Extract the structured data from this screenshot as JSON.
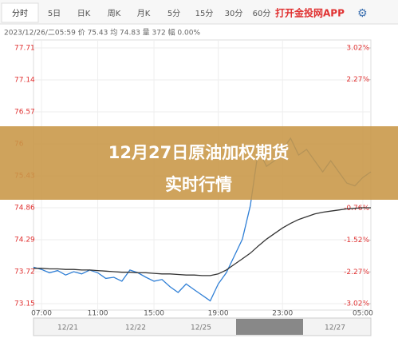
{
  "tabs": [
    "分时",
    "5日",
    "日K",
    "周K",
    "月K",
    "5分",
    "15分",
    "30分",
    "60分"
  ],
  "app_link": "打开金投网APP",
  "info": "2023/12/26/二05:59 价 75.43 均 74.83 量 372 幅 0.00%",
  "banner": "12月27日原油加权期货实时行情",
  "navigator": [
    "12/21",
    "12/22",
    "12/25",
    "12/27"
  ],
  "chart_data": {
    "type": "line",
    "categories": [
      null,
      "07:00",
      null,
      null,
      null,
      null,
      null,
      null,
      "11:00",
      null,
      null,
      null,
      null,
      null,
      null,
      "15:00",
      null,
      null,
      null,
      null,
      null,
      null,
      null,
      "19:00",
      null,
      null,
      null,
      null,
      null,
      null,
      null,
      "23:00",
      null,
      null,
      null,
      null,
      null,
      null,
      null,
      null,
      null,
      "05:00",
      null
    ],
    "series": [
      {
        "name": "价",
        "color": "#2f7fd6",
        "values": [
          73.8,
          73.76,
          73.7,
          73.74,
          73.66,
          73.72,
          73.68,
          73.75,
          73.7,
          73.6,
          73.62,
          73.55,
          73.75,
          73.7,
          73.62,
          73.55,
          73.58,
          73.45,
          73.35,
          73.5,
          73.4,
          73.3,
          73.2,
          73.5,
          73.7,
          74.0,
          74.3,
          74.9,
          75.9,
          75.6,
          75.7,
          75.9,
          76.1,
          75.8,
          75.9,
          75.7,
          75.5,
          75.7,
          75.5,
          75.3,
          75.25,
          75.4,
          75.5
        ]
      },
      {
        "name": "均",
        "color": "#333333",
        "values": [
          73.78,
          73.78,
          73.77,
          73.77,
          73.76,
          73.76,
          73.75,
          73.75,
          73.74,
          73.73,
          73.72,
          73.71,
          73.71,
          73.7,
          73.7,
          73.69,
          73.68,
          73.68,
          73.67,
          73.66,
          73.66,
          73.65,
          73.65,
          73.68,
          73.75,
          73.85,
          73.95,
          74.05,
          74.18,
          74.3,
          74.4,
          74.5,
          74.58,
          74.65,
          74.7,
          74.75,
          74.78,
          74.8,
          74.82,
          74.84,
          74.85,
          74.86,
          74.86
        ]
      }
    ],
    "ylim": [
      73.15,
      77.71
    ],
    "yticks": [
      77.71,
      77.14,
      76.57,
      76.0,
      75.43,
      74.86,
      74.29,
      73.72,
      73.15
    ],
    "y2lim": [
      -3.02,
      3.02
    ],
    "y2ticks": [
      {
        "value": 3.02,
        "label": "3.02%"
      },
      {
        "value": 2.27,
        "label": "2.27%"
      },
      {
        "value": -0.76,
        "label": "-0.76%"
      },
      {
        "value": -1.52,
        "label": "-1.52%"
      },
      {
        "value": -2.27,
        "label": "-2.27%"
      },
      {
        "value": -3.02,
        "label": "-3.02%"
      }
    ],
    "grid": true
  }
}
